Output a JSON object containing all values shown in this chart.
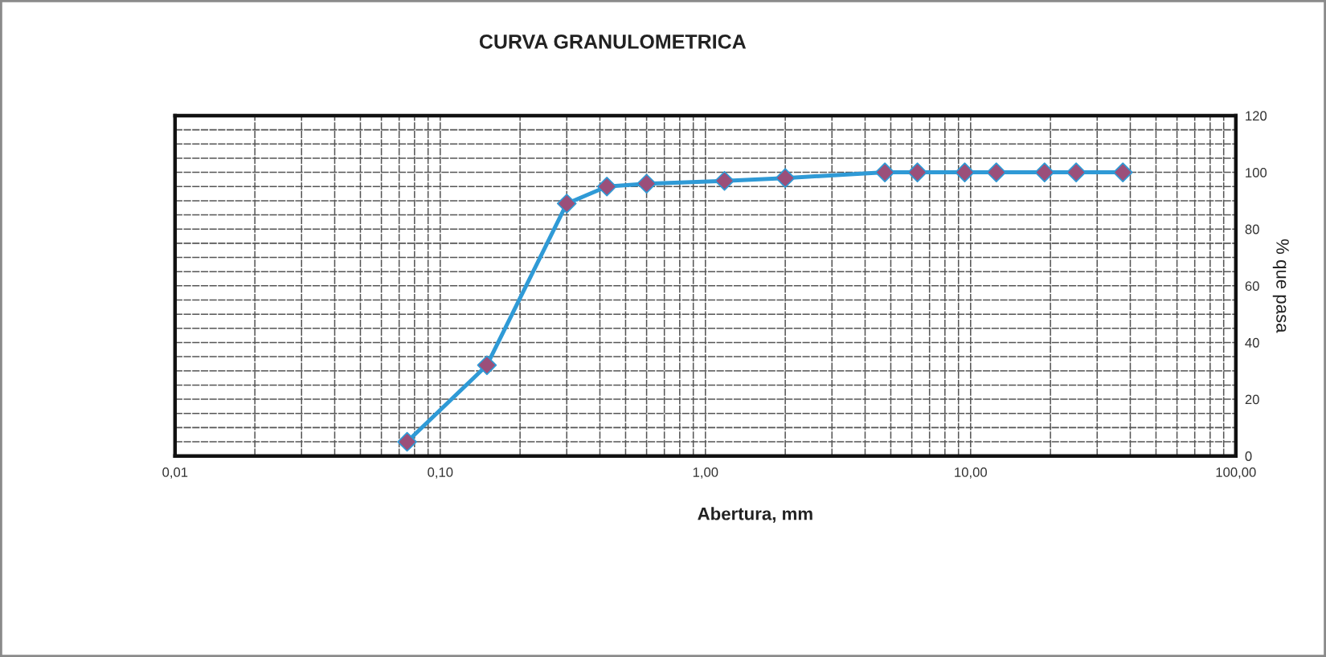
{
  "chart_data": {
    "type": "line",
    "title": "CURVA GRANULOMETRICA",
    "xlabel": "Abertura, mm",
    "ylabel": "% que pasa",
    "log": "x",
    "x": [
      0.075,
      0.15,
      0.3,
      0.425,
      0.6,
      1.18,
      2.0,
      4.75,
      6.3,
      9.5,
      12.5,
      19,
      25,
      37.5
    ],
    "series": [
      {
        "color": "#2f9ad6",
        "colors": [
          "#9b4f7a",
          "#9b4f7a",
          "#9b4f7a",
          "#9b4f7a",
          "#9b4f7a",
          "#9b4f7a",
          "#9b4f7a",
          "#9b4f7a",
          "#9b4f7a",
          "#9b4f7a",
          "#9b4f7a",
          "#9b4f7a",
          "#9b4f7a",
          "#9b4f7a"
        ],
        "values": [
          5,
          32,
          89,
          95,
          96,
          97,
          98,
          100,
          100,
          100,
          100,
          100,
          100,
          100
        ]
      }
    ],
    "xlim": [
      0.01,
      100
    ],
    "xticks": [
      {
        "value": 0.01,
        "label": "0,01"
      },
      {
        "value": 0.02,
        "label": null
      },
      {
        "value": 0.03,
        "label": null
      },
      {
        "value": 0.04,
        "label": null
      },
      {
        "value": 0.05,
        "label": null
      },
      {
        "value": 0.06,
        "label": null
      },
      {
        "value": 0.07,
        "label": null
      },
      {
        "value": 0.08,
        "label": null
      },
      {
        "value": 0.09,
        "label": null
      },
      {
        "value": 0.1,
        "label": "0,10"
      },
      {
        "value": 0.2,
        "label": null
      },
      {
        "value": 0.3,
        "label": null
      },
      {
        "value": 0.4,
        "label": null
      },
      {
        "value": 0.5,
        "label": null
      },
      {
        "value": 0.6,
        "label": null
      },
      {
        "value": 0.7,
        "label": null
      },
      {
        "value": 0.8,
        "label": null
      },
      {
        "value": 0.9,
        "label": null
      },
      {
        "value": 1,
        "label": "1,00"
      },
      {
        "value": 2,
        "label": null
      },
      {
        "value": 3,
        "label": null
      },
      {
        "value": 4,
        "label": null
      },
      {
        "value": 5,
        "label": null
      },
      {
        "value": 6,
        "label": null
      },
      {
        "value": 7,
        "label": null
      },
      {
        "value": 8,
        "label": null
      },
      {
        "value": 9,
        "label": null
      },
      {
        "value": 10,
        "label": "10,00"
      },
      {
        "value": 20,
        "label": null
      },
      {
        "value": 30,
        "label": null
      },
      {
        "value": 40,
        "label": null
      },
      {
        "value": 50,
        "label": null
      },
      {
        "value": 60,
        "label": null
      },
      {
        "value": 70,
        "label": null
      },
      {
        "value": 80,
        "label": null
      },
      {
        "value": 90,
        "label": null
      },
      {
        "value": 100,
        "label": "100,00"
      }
    ],
    "ylim": [
      0,
      120
    ],
    "yticks": [
      0,
      {
        "value": 5,
        "label": null
      },
      {
        "value": 10,
        "label": null
      },
      {
        "value": 15,
        "label": null
      },
      20,
      {
        "value": 25,
        "label": null
      },
      {
        "value": 30,
        "label": null
      },
      {
        "value": 35,
        "label": null
      },
      40,
      {
        "value": 45,
        "label": null
      },
      {
        "value": 50,
        "label": null
      },
      {
        "value": 55,
        "label": null
      },
      60,
      {
        "value": 65,
        "label": null
      },
      {
        "value": 70,
        "label": null
      },
      {
        "value": 75,
        "label": null
      },
      80,
      {
        "value": 85,
        "label": null
      },
      {
        "value": 90,
        "label": null
      },
      {
        "value": 95,
        "label": null
      },
      100,
      {
        "value": 105,
        "label": null
      },
      {
        "value": 110,
        "label": null
      },
      {
        "value": 115,
        "label": null
      },
      120
    ],
    "grid": true,
    "marker": "diamond",
    "line_style": "solid"
  }
}
